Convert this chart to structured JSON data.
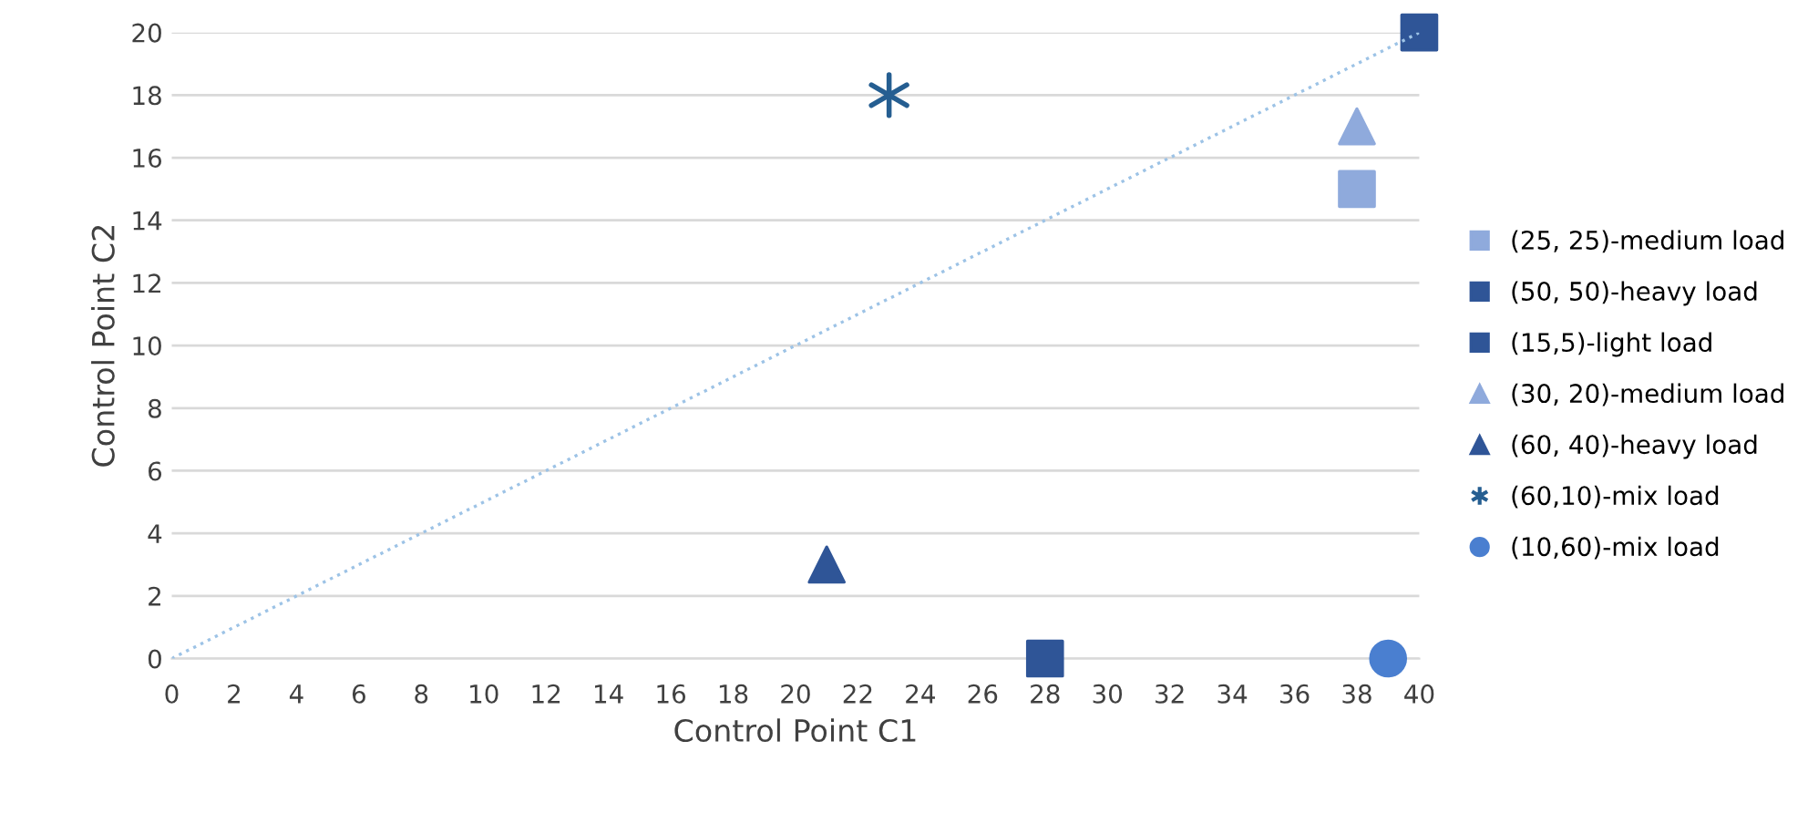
{
  "chart_data": {
    "type": "scatter",
    "xlabel": "Control Point C1",
    "ylabel": "Control Point C2",
    "xlim": [
      0,
      40
    ],
    "ylim": [
      0,
      20
    ],
    "xticks": [
      0,
      2,
      4,
      6,
      8,
      10,
      12,
      14,
      16,
      18,
      20,
      22,
      24,
      26,
      28,
      30,
      32,
      34,
      36,
      38,
      40
    ],
    "yticks": [
      0,
      2,
      4,
      6,
      8,
      10,
      12,
      14,
      16,
      18,
      20
    ],
    "grid": "y",
    "legend": "right",
    "series": [
      {
        "name": "(25, 25)-medium load",
        "color": "#8faadc",
        "marker": "square",
        "x": [
          38
        ],
        "values": [
          15
        ]
      },
      {
        "name": "(50, 50)-heavy load",
        "color": "#2f5597",
        "marker": "square",
        "x": [
          28
        ],
        "values": [
          0
        ]
      },
      {
        "name": "(15,5)-light load",
        "color": "#2f5597",
        "marker": "square",
        "x": [
          40
        ],
        "values": [
          20
        ]
      },
      {
        "name": "(30, 20)-medium load",
        "color": "#8faadc",
        "marker": "triangle",
        "x": [
          38
        ],
        "values": [
          17
        ]
      },
      {
        "name": "(60, 40)-heavy load",
        "color": "#2f5597",
        "marker": "triangle",
        "x": [
          21
        ],
        "values": [
          3
        ]
      },
      {
        "name": "(60,10)-mix load",
        "color": "#255e91",
        "marker": "cross",
        "x": [
          23
        ],
        "values": [
          18
        ]
      },
      {
        "name": "(10,60)-mix load",
        "color": "#4a7fd0",
        "marker": "circle",
        "x": [
          39
        ],
        "values": [
          0
        ]
      },
      {
        "type": "line",
        "color": "#9dc3e6",
        "line_style": "dotted",
        "marker": "none",
        "x": [
          0,
          40
        ],
        "values": [
          0,
          20
        ]
      }
    ]
  }
}
